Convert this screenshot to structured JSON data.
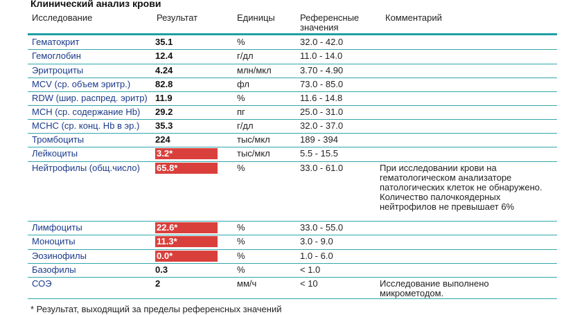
{
  "title": "Клинический анализ крови",
  "headers": {
    "study": "Исследование",
    "result": "Результат",
    "units": "Единицы",
    "reference": "Референсные значения",
    "comment": "Комментарий"
  },
  "rows": [
    {
      "name": "Гематокрит",
      "value": "35.1",
      "flag": false,
      "unit": "%",
      "ref": "32.0 - 42.0",
      "comment": ""
    },
    {
      "name": "Гемоглобин",
      "value": "12.4",
      "flag": false,
      "unit": "г/дл",
      "ref": "11.0 - 14.0",
      "comment": ""
    },
    {
      "name": "Эритроциты",
      "value": "4.24",
      "flag": false,
      "unit": "млн/мкл",
      "ref": "3.70 - 4.90",
      "comment": ""
    },
    {
      "name": "MCV (ср. объем эритр.)",
      "value": "82.8",
      "flag": false,
      "unit": "фл",
      "ref": "73.0 - 85.0",
      "comment": ""
    },
    {
      "name": "RDW (шир. распред. эритр)",
      "value": "11.9",
      "flag": false,
      "unit": "%",
      "ref": "11.6 - 14.8",
      "comment": ""
    },
    {
      "name": "MCH (ср. содержание Hb)",
      "value": "29.2",
      "flag": false,
      "unit": "пг",
      "ref": "25.0 - 31.0",
      "comment": ""
    },
    {
      "name": "MCHC (ср. конц. Hb в эр.)",
      "value": "35.3",
      "flag": false,
      "unit": "г/дл",
      "ref": "32.0 - 37.0",
      "comment": ""
    },
    {
      "name": "Тромбоциты",
      "value": "224",
      "flag": false,
      "unit": "тыс/мкл",
      "ref": "189 - 394",
      "comment": ""
    },
    {
      "name": "Лейкоциты",
      "value": "3.2*",
      "flag": true,
      "unit": "тыс/мкл",
      "ref": "5.5 - 15.5",
      "comment": ""
    },
    {
      "name": "Нейтрофилы (общ.число)",
      "value": "65.8*",
      "flag": true,
      "unit": "%",
      "ref": "33.0 - 61.0",
      "comment": "При исследовании крови на гематологическом анализаторе патологических клеток не обнаружено. Количество палочкоядерных нейтрофилов не превышает 6%"
    },
    {
      "name": "Лимфоциты",
      "value": "22.6*",
      "flag": true,
      "unit": "%",
      "ref": "33.0 - 55.0",
      "comment": ""
    },
    {
      "name": "Моноциты",
      "value": "11.3*",
      "flag": true,
      "unit": "%",
      "ref": "3.0 - 9.0",
      "comment": ""
    },
    {
      "name": "Эозинофилы",
      "value": "0.0*",
      "flag": true,
      "unit": "%",
      "ref": "1.0 - 6.0",
      "comment": ""
    },
    {
      "name": "Базофилы",
      "value": "0.3",
      "flag": false,
      "unit": "%",
      "ref": "< 1.0",
      "comment": ""
    },
    {
      "name": "СОЭ",
      "value": "2",
      "flag": false,
      "unit": "мм/ч",
      "ref": "< 10",
      "comment": "Исследование выполнено микрометодом."
    }
  ],
  "footnote": "* Результат, выходящий за пределы референсных значений",
  "colors": {
    "flag_bg": "#d9403c",
    "rule": "#2ea6ac",
    "name_text": "#1a3a8a"
  }
}
